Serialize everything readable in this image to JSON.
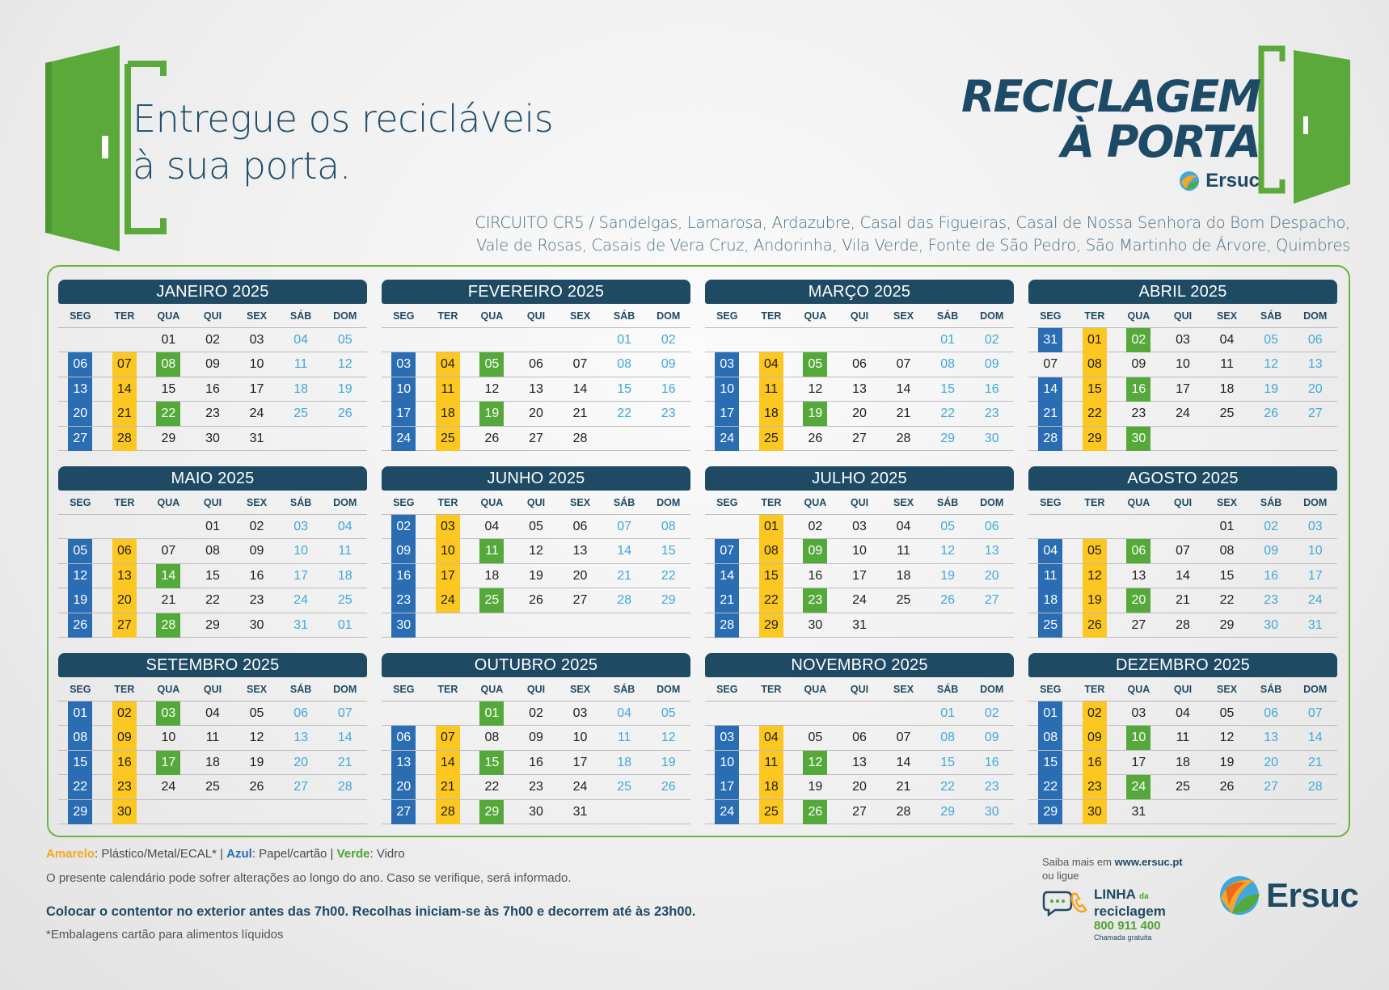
{
  "headline": [
    "Entregue os recicláveis",
    "à sua porta."
  ],
  "brand": {
    "line1": "RECICLAGEM",
    "line2": "À PORTA",
    "company": "Ersuc"
  },
  "circuit": [
    "CIRCUITO CR5 / Sandelgas, Lamarosa, Ardazubre, Casal das Figueiras, Casal de Nossa Senhora do Bom Despacho,",
    "Vale de Rosas, Casais de Vera Cruz, Andorinha, Vila Verde, Fonte de São Pedro, São Martinho de Árvore, Quimbres"
  ],
  "colors": {
    "blue": "#2a6db3",
    "yellow": "#fcc720",
    "green": "#55a93a",
    "header": "#1f4a64",
    "weekend": "#3fa9dc"
  },
  "weekdays": [
    "SEG",
    "TER",
    "QUA",
    "QUI",
    "SEX",
    "SÁB",
    "DOM"
  ],
  "months": [
    {
      "title": "JANEIRO 2025",
      "weeks": [
        [
          null,
          null,
          "01",
          "02",
          "03",
          "04",
          "05"
        ],
        [
          [
            "06",
            "b"
          ],
          [
            "07",
            "y"
          ],
          [
            "08",
            "g"
          ],
          "09",
          "10",
          "11",
          "12"
        ],
        [
          [
            "13",
            "b"
          ],
          [
            "14",
            "y"
          ],
          "15",
          "16",
          "17",
          "18",
          "19"
        ],
        [
          [
            "20",
            "b"
          ],
          [
            "21",
            "y"
          ],
          [
            "22",
            "g"
          ],
          "23",
          "24",
          "25",
          "26"
        ],
        [
          [
            "27",
            "b"
          ],
          [
            "28",
            "y"
          ],
          "29",
          "30",
          "31",
          null,
          null
        ]
      ]
    },
    {
      "title": "FEVEREIRO 2025",
      "weeks": [
        [
          null,
          null,
          null,
          null,
          null,
          "01",
          "02"
        ],
        [
          [
            "03",
            "b"
          ],
          [
            "04",
            "y"
          ],
          [
            "05",
            "g"
          ],
          "06",
          "07",
          "08",
          "09"
        ],
        [
          [
            "10",
            "b"
          ],
          [
            "11",
            "y"
          ],
          "12",
          "13",
          "14",
          "15",
          "16"
        ],
        [
          [
            "17",
            "b"
          ],
          [
            "18",
            "y"
          ],
          [
            "19",
            "g"
          ],
          "20",
          "21",
          "22",
          "23"
        ],
        [
          [
            "24",
            "b"
          ],
          [
            "25",
            "y"
          ],
          "26",
          "27",
          "28",
          null,
          null
        ]
      ]
    },
    {
      "title": "MARÇO 2025",
      "weeks": [
        [
          null,
          null,
          null,
          null,
          null,
          "01",
          "02"
        ],
        [
          [
            "03",
            "b"
          ],
          [
            "04",
            "y"
          ],
          [
            "05",
            "g"
          ],
          "06",
          "07",
          "08",
          "09"
        ],
        [
          [
            "10",
            "b"
          ],
          [
            "11",
            "y"
          ],
          "12",
          "13",
          "14",
          "15",
          "16"
        ],
        [
          [
            "17",
            "b"
          ],
          [
            "18",
            "y"
          ],
          [
            "19",
            "g"
          ],
          "20",
          "21",
          "22",
          "23"
        ],
        [
          [
            "24",
            "b"
          ],
          [
            "25",
            "y"
          ],
          "26",
          "27",
          "28",
          "29",
          "30"
        ]
      ]
    },
    {
      "title": "ABRIL 2025",
      "weeks": [
        [
          [
            "31",
            "b"
          ],
          [
            "01",
            "y"
          ],
          [
            "02",
            "g"
          ],
          "03",
          "04",
          "05",
          "06"
        ],
        [
          "07",
          [
            "08",
            "y"
          ],
          "09",
          "10",
          "11",
          "12",
          "13"
        ],
        [
          [
            "14",
            "b"
          ],
          [
            "15",
            "y"
          ],
          [
            "16",
            "g"
          ],
          "17",
          "18",
          "19",
          "20"
        ],
        [
          [
            "21",
            "b"
          ],
          [
            "22",
            "y"
          ],
          "23",
          "24",
          "25",
          "26",
          "27"
        ],
        [
          [
            "28",
            "b"
          ],
          [
            "29",
            "y"
          ],
          [
            "30",
            "g"
          ],
          null,
          null,
          null,
          null
        ]
      ]
    },
    {
      "title": "MAIO 2025",
      "weeks": [
        [
          null,
          null,
          null,
          "01",
          "02",
          "03",
          "04"
        ],
        [
          [
            "05",
            "b"
          ],
          [
            "06",
            "y"
          ],
          "07",
          "08",
          "09",
          "10",
          "11"
        ],
        [
          [
            "12",
            "b"
          ],
          [
            "13",
            "y"
          ],
          [
            "14",
            "g"
          ],
          "15",
          "16",
          "17",
          "18"
        ],
        [
          [
            "19",
            "b"
          ],
          [
            "20",
            "y"
          ],
          "21",
          "22",
          "23",
          "24",
          "25"
        ],
        [
          [
            "26",
            "b"
          ],
          [
            "27",
            "y"
          ],
          [
            "28",
            "g"
          ],
          "29",
          "30",
          "31",
          "01"
        ]
      ]
    },
    {
      "title": "JUNHO 2025",
      "weeks": [
        [
          [
            "02",
            "b"
          ],
          [
            "03",
            "y"
          ],
          "04",
          "05",
          "06",
          "07",
          "08"
        ],
        [
          [
            "09",
            "b"
          ],
          [
            "10",
            "y"
          ],
          [
            "11",
            "g"
          ],
          "12",
          "13",
          "14",
          "15"
        ],
        [
          [
            "16",
            "b"
          ],
          [
            "17",
            "y"
          ],
          "18",
          "19",
          "20",
          "21",
          "22"
        ],
        [
          [
            "23",
            "b"
          ],
          [
            "24",
            "y"
          ],
          [
            "25",
            "g"
          ],
          "26",
          "27",
          "28",
          "29"
        ],
        [
          [
            "30",
            "b"
          ],
          null,
          null,
          null,
          null,
          null,
          null
        ]
      ]
    },
    {
      "title": "JULHO 2025",
      "weeks": [
        [
          null,
          [
            "01",
            "y"
          ],
          "02",
          "03",
          "04",
          "05",
          "06"
        ],
        [
          [
            "07",
            "b"
          ],
          [
            "08",
            "y"
          ],
          [
            "09",
            "g"
          ],
          "10",
          "11",
          "12",
          "13"
        ],
        [
          [
            "14",
            "b"
          ],
          [
            "15",
            "y"
          ],
          "16",
          "17",
          "18",
          "19",
          "20"
        ],
        [
          [
            "21",
            "b"
          ],
          [
            "22",
            "y"
          ],
          [
            "23",
            "g"
          ],
          "24",
          "25",
          "26",
          "27"
        ],
        [
          [
            "28",
            "b"
          ],
          [
            "29",
            "y"
          ],
          "30",
          "31",
          null,
          null,
          null
        ]
      ]
    },
    {
      "title": "AGOSTO 2025",
      "weeks": [
        [
          null,
          null,
          null,
          null,
          "01",
          "02",
          "03"
        ],
        [
          [
            "04",
            "b"
          ],
          [
            "05",
            "y"
          ],
          [
            "06",
            "g"
          ],
          "07",
          "08",
          "09",
          "10"
        ],
        [
          [
            "11",
            "b"
          ],
          [
            "12",
            "y"
          ],
          "13",
          "14",
          "15",
          "16",
          "17"
        ],
        [
          [
            "18",
            "b"
          ],
          [
            "19",
            "y"
          ],
          [
            "20",
            "g"
          ],
          "21",
          "22",
          "23",
          "24"
        ],
        [
          [
            "25",
            "b"
          ],
          [
            "26",
            "y"
          ],
          "27",
          "28",
          "29",
          "30",
          "31"
        ]
      ]
    },
    {
      "title": "SETEMBRO 2025",
      "weeks": [
        [
          [
            "01",
            "b"
          ],
          [
            "02",
            "y"
          ],
          [
            "03",
            "g"
          ],
          "04",
          "05",
          "06",
          "07"
        ],
        [
          [
            "08",
            "b"
          ],
          [
            "09",
            "y"
          ],
          "10",
          "11",
          "12",
          "13",
          "14"
        ],
        [
          [
            "15",
            "b"
          ],
          [
            "16",
            "y"
          ],
          [
            "17",
            "g"
          ],
          "18",
          "19",
          "20",
          "21"
        ],
        [
          [
            "22",
            "b"
          ],
          [
            "23",
            "y"
          ],
          "24",
          "25",
          "26",
          "27",
          "28"
        ],
        [
          [
            "29",
            "b"
          ],
          [
            "30",
            "y"
          ],
          null,
          null,
          null,
          null,
          null
        ]
      ]
    },
    {
      "title": "OUTUBRO 2025",
      "weeks": [
        [
          null,
          null,
          [
            "01",
            "g"
          ],
          "02",
          "03",
          "04",
          "05"
        ],
        [
          [
            "06",
            "b"
          ],
          [
            "07",
            "y"
          ],
          "08",
          "09",
          "10",
          "11",
          "12"
        ],
        [
          [
            "13",
            "b"
          ],
          [
            "14",
            "y"
          ],
          [
            "15",
            "g"
          ],
          "16",
          "17",
          "18",
          "19"
        ],
        [
          [
            "20",
            "b"
          ],
          [
            "21",
            "y"
          ],
          "22",
          "23",
          "24",
          "25",
          "26"
        ],
        [
          [
            "27",
            "b"
          ],
          [
            "28",
            "y"
          ],
          [
            "29",
            "g"
          ],
          "30",
          "31",
          null,
          null
        ]
      ]
    },
    {
      "title": "NOVEMBRO 2025",
      "weeks": [
        [
          null,
          null,
          null,
          null,
          null,
          "01",
          "02"
        ],
        [
          [
            "03",
            "b"
          ],
          [
            "04",
            "y"
          ],
          "05",
          "06",
          "07",
          "08",
          "09"
        ],
        [
          [
            "10",
            "b"
          ],
          [
            "11",
            "y"
          ],
          [
            "12",
            "g"
          ],
          "13",
          "14",
          "15",
          "16"
        ],
        [
          [
            "17",
            "b"
          ],
          [
            "18",
            "y"
          ],
          "19",
          "20",
          "21",
          "22",
          "23"
        ],
        [
          [
            "24",
            "b"
          ],
          [
            "25",
            "y"
          ],
          [
            "26",
            "g"
          ],
          "27",
          "28",
          "29",
          "30"
        ]
      ]
    },
    {
      "title": "DEZEMBRO 2025",
      "weeks": [
        [
          [
            "01",
            "b"
          ],
          [
            "02",
            "y"
          ],
          "03",
          "04",
          "05",
          "06",
          "07"
        ],
        [
          [
            "08",
            "b"
          ],
          [
            "09",
            "y"
          ],
          [
            "10",
            "g"
          ],
          "11",
          "12",
          "13",
          "14"
        ],
        [
          [
            "15",
            "b"
          ],
          [
            "16",
            "y"
          ],
          "17",
          "18",
          "19",
          "20",
          "21"
        ],
        [
          [
            "22",
            "b"
          ],
          [
            "23",
            "y"
          ],
          [
            "24",
            "g"
          ],
          "25",
          "26",
          "27",
          "28"
        ],
        [
          [
            "29",
            "b"
          ],
          [
            "30",
            "y"
          ],
          "31",
          null,
          null,
          null,
          null
        ]
      ]
    }
  ],
  "legend": {
    "yellow_label": "Amarelo",
    "yellow_text": ": Plástico/Metal/ECAL* | ",
    "blue_label": "Azul",
    "blue_text": ": Papel/cartão  | ",
    "green_label": "Verde",
    "green_text": ": Vidro"
  },
  "notes": {
    "changes": "O presente calendário pode sofrer alterações ao longo do ano. Caso se verifique, será informado.",
    "schedule": "Colocar o contentor no exterior antes das 7h00. Recolhas iniciam-se às 7h00 e decorrem até às 23h00.",
    "footnote": "*Embalagens cartão para alimentos líquidos"
  },
  "contact": {
    "saiba": "Saiba mais em ",
    "url": "www.ersuc.pt",
    "ou_ligue": "ou ligue",
    "linha": "LINHA",
    "da": "da",
    "reciclagem": "reciclagem",
    "phone": "800 911 400",
    "free": "Chamada gratuita"
  },
  "footer_logo": "Ersuc"
}
